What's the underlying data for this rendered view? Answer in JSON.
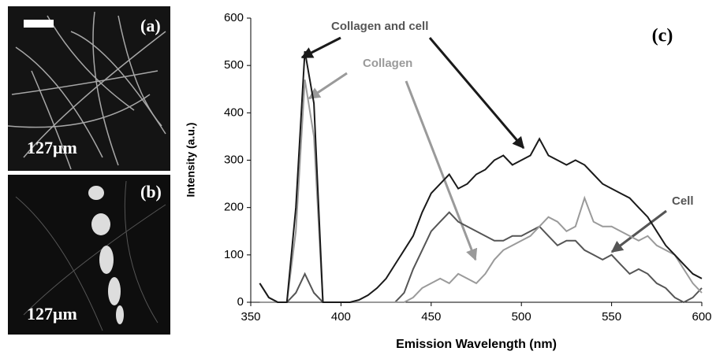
{
  "panels": {
    "a": {
      "label": "(a)",
      "scale": "127μm"
    },
    "b": {
      "label": "(b)",
      "scale": "127μm"
    }
  },
  "chart_data": {
    "type": "line",
    "panel_label": "(c)",
    "x_label": "Emission Wavelength (nm)",
    "y_label": "Intensity (a.u.)",
    "xlim": [
      350,
      600
    ],
    "xticks": [
      350,
      400,
      450,
      500,
      550,
      600
    ],
    "ylim": [
      0,
      600
    ],
    "yticks": [
      0,
      100,
      200,
      300,
      400,
      500,
      600
    ],
    "x": [
      355,
      360,
      365,
      370,
      375,
      380,
      385,
      390,
      395,
      400,
      405,
      410,
      415,
      420,
      425,
      430,
      435,
      440,
      445,
      450,
      455,
      460,
      465,
      470,
      475,
      480,
      485,
      490,
      495,
      500,
      505,
      510,
      515,
      520,
      525,
      530,
      535,
      540,
      545,
      550,
      555,
      560,
      565,
      570,
      575,
      580,
      585,
      590,
      595,
      600
    ],
    "series": [
      {
        "name": "Collagen and cell",
        "color": "#1a1a1a",
        "values": [
          40,
          10,
          0,
          0,
          200,
          530,
          420,
          0,
          0,
          0,
          0,
          5,
          15,
          30,
          50,
          80,
          110,
          140,
          190,
          230,
          250,
          270,
          240,
          250,
          270,
          280,
          300,
          310,
          290,
          300,
          310,
          345,
          310,
          300,
          290,
          300,
          290,
          270,
          250,
          240,
          230,
          220,
          200,
          180,
          150,
          120,
          100,
          80,
          60,
          50
        ]
      },
      {
        "name": "Collagen",
        "color": "#9a9a9a",
        "values": [
          0,
          0,
          0,
          0,
          150,
          470,
          350,
          0,
          0,
          0,
          0,
          0,
          0,
          0,
          0,
          0,
          0,
          10,
          30,
          40,
          50,
          40,
          60,
          50,
          40,
          60,
          90,
          110,
          120,
          130,
          140,
          160,
          180,
          170,
          150,
          160,
          220,
          170,
          160,
          160,
          150,
          140,
          130,
          140,
          120,
          110,
          100,
          70,
          40,
          20
        ]
      },
      {
        "name": "Cell",
        "color": "#555555",
        "values": [
          40,
          10,
          0,
          0,
          20,
          60,
          20,
          0,
          0,
          0,
          0,
          0,
          0,
          0,
          0,
          0,
          20,
          70,
          110,
          150,
          170,
          190,
          170,
          160,
          150,
          140,
          130,
          130,
          140,
          140,
          150,
          160,
          140,
          120,
          130,
          130,
          110,
          100,
          90,
          100,
          80,
          60,
          70,
          60,
          40,
          30,
          10,
          0,
          10,
          30
        ]
      }
    ]
  }
}
